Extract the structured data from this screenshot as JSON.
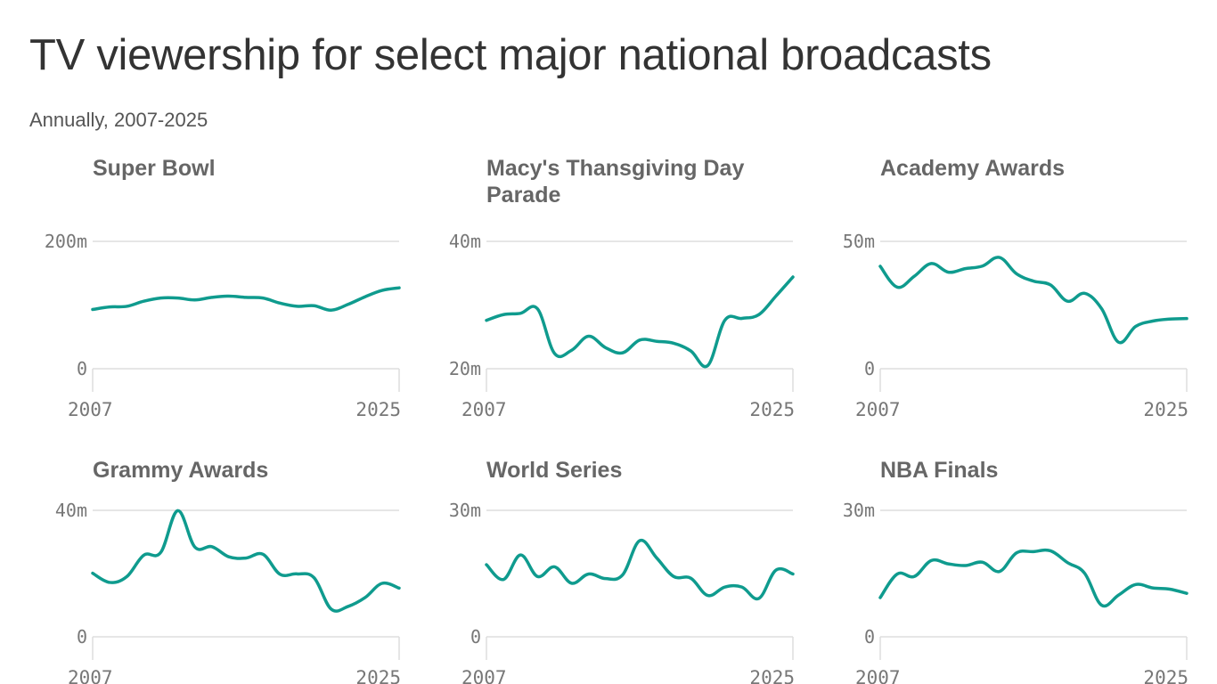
{
  "title": "TV viewership for select major national broadcasts",
  "subtitle": "Annually, 2007-2025",
  "colors": {
    "line": "#0f9b8e",
    "grid": "#dddddd",
    "text": "#777777"
  },
  "chart_data": [
    {
      "type": "line",
      "title": "Super Bowl",
      "xlabel": "",
      "ylabel": "",
      "xlim": [
        2007,
        2025
      ],
      "ylim": [
        0,
        200
      ],
      "y_tick_values": [
        0,
        200
      ],
      "y_tick_labels": [
        "0",
        "200m"
      ],
      "x_tick_labels": [
        "2007",
        "2025"
      ],
      "x": [
        2007,
        2008,
        2009,
        2010,
        2011,
        2012,
        2013,
        2014,
        2015,
        2016,
        2017,
        2018,
        2019,
        2020,
        2021,
        2022,
        2023,
        2024,
        2025
      ],
      "values": [
        93,
        97,
        98,
        106,
        111,
        111,
        108,
        112,
        114,
        112,
        111,
        103,
        98,
        99,
        92,
        101,
        113,
        123,
        127
      ]
    },
    {
      "type": "line",
      "title": "Macy's Thansgiving Day Parade",
      "xlabel": "",
      "ylabel": "",
      "xlim": [
        2007,
        2025
      ],
      "ylim": [
        20,
        40
      ],
      "y_tick_values": [
        20,
        40
      ],
      "y_tick_labels": [
        "20m",
        "40m"
      ],
      "x_tick_labels": [
        "2007",
        "2025"
      ],
      "x": [
        2007,
        2008,
        2009,
        2010,
        2011,
        2012,
        2013,
        2014,
        2015,
        2016,
        2017,
        2018,
        2019,
        2020,
        2021,
        2022,
        2023,
        2024,
        2025
      ],
      "values": [
        27.6,
        28.5,
        28.7,
        29.4,
        22.4,
        22.9,
        25.1,
        23.3,
        22.5,
        24.5,
        24.3,
        24.0,
        22.8,
        20.5,
        27.6,
        27.9,
        28.5,
        31.4,
        34.4
      ]
    },
    {
      "type": "line",
      "title": "Academy Awards",
      "xlabel": "",
      "ylabel": "",
      "xlim": [
        2007,
        2025
      ],
      "ylim": [
        0,
        50
      ],
      "y_tick_values": [
        0,
        50
      ],
      "y_tick_labels": [
        "0",
        "50m"
      ],
      "x_tick_labels": [
        "2007",
        "2025"
      ],
      "x": [
        2007,
        2008,
        2009,
        2010,
        2011,
        2012,
        2013,
        2014,
        2015,
        2016,
        2017,
        2018,
        2019,
        2020,
        2021,
        2022,
        2023,
        2024,
        2025
      ],
      "values": [
        40.2,
        32.0,
        36.3,
        41.3,
        37.9,
        39.3,
        40.3,
        43.7,
        37.3,
        34.4,
        32.9,
        26.5,
        29.6,
        23.6,
        10.4,
        16.6,
        18.7,
        19.5,
        19.7
      ]
    },
    {
      "type": "line",
      "title": "Grammy Awards",
      "xlabel": "",
      "ylabel": "",
      "xlim": [
        2007,
        2025
      ],
      "ylim": [
        0,
        40
      ],
      "y_tick_values": [
        0,
        40
      ],
      "y_tick_labels": [
        "0",
        "40m"
      ],
      "x_tick_labels": [
        "2007",
        "2025"
      ],
      "x": [
        2007,
        2008,
        2009,
        2010,
        2011,
        2012,
        2013,
        2014,
        2015,
        2016,
        2017,
        2018,
        2019,
        2020,
        2021,
        2022,
        2023,
        2024,
        2025
      ],
      "values": [
        20.1,
        17.2,
        19.0,
        25.8,
        26.7,
        39.9,
        28.4,
        28.5,
        25.3,
        24.9,
        26.1,
        19.8,
        19.9,
        18.7,
        8.8,
        9.6,
        12.4,
        16.9,
        15.4
      ]
    },
    {
      "type": "line",
      "title": "World Series",
      "xlabel": "",
      "ylabel": "",
      "xlim": [
        2007,
        2025
      ],
      "ylim": [
        0,
        30
      ],
      "y_tick_values": [
        0,
        30
      ],
      "y_tick_labels": [
        "0",
        "30m"
      ],
      "x_tick_labels": [
        "2007",
        "2025"
      ],
      "x": [
        2007,
        2008,
        2009,
        2010,
        2011,
        2012,
        2013,
        2014,
        2015,
        2016,
        2017,
        2018,
        2019,
        2020,
        2021,
        2022,
        2023,
        2024,
        2025
      ],
      "values": [
        17.1,
        13.6,
        19.4,
        14.3,
        16.6,
        12.7,
        14.9,
        13.8,
        14.7,
        22.8,
        18.7,
        14.3,
        13.9,
        9.8,
        11.8,
        11.8,
        9.1,
        15.8,
        14.9
      ]
    },
    {
      "type": "line",
      "title": "NBA Finals",
      "xlabel": "",
      "ylabel": "",
      "xlim": [
        2007,
        2025
      ],
      "ylim": [
        0,
        30
      ],
      "y_tick_values": [
        0,
        30
      ],
      "y_tick_labels": [
        "0",
        "30m"
      ],
      "x_tick_labels": [
        "2007",
        "2025"
      ],
      "x": [
        2007,
        2008,
        2009,
        2010,
        2011,
        2012,
        2013,
        2014,
        2015,
        2016,
        2017,
        2018,
        2019,
        2020,
        2021,
        2022,
        2023,
        2024,
        2025
      ],
      "values": [
        9.3,
        14.9,
        14.3,
        18.1,
        17.3,
        16.9,
        17.7,
        15.5,
        19.9,
        20.2,
        20.4,
        17.6,
        15.1,
        7.5,
        9.9,
        12.4,
        11.6,
        11.3,
        10.3
      ]
    }
  ]
}
